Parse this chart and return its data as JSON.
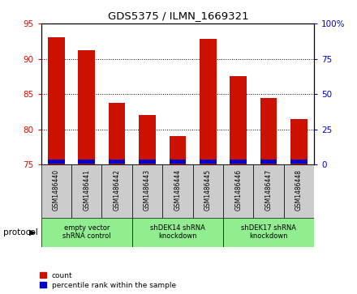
{
  "title": "GDS5375 / ILMN_1669321",
  "samples": [
    "GSM1486440",
    "GSM1486441",
    "GSM1486442",
    "GSM1486443",
    "GSM1486444",
    "GSM1486445",
    "GSM1486446",
    "GSM1486447",
    "GSM1486448"
  ],
  "count_values": [
    93.0,
    91.2,
    83.7,
    82.0,
    79.0,
    92.8,
    87.5,
    84.5,
    81.5
  ],
  "blue_heights": [
    0.55,
    0.55,
    0.55,
    0.55,
    0.55,
    0.55,
    0.55,
    0.55,
    0.55
  ],
  "ymin": 75,
  "ymax": 95,
  "y2min": 0,
  "y2max": 100,
  "yticks_left": [
    75,
    80,
    85,
    90,
    95
  ],
  "yticks_right": [
    0,
    25,
    50,
    75,
    100
  ],
  "bar_color_red": "#CC1100",
  "bar_color_blue": "#0000CC",
  "protocol_groups": [
    {
      "label": "empty vector\nshRNA control",
      "start": 0,
      "end": 3,
      "color": "#90EE90"
    },
    {
      "label": "shDEK14 shRNA\nknockdown",
      "start": 3,
      "end": 6,
      "color": "#90EE90"
    },
    {
      "label": "shDEK17 shRNA\nknockdown",
      "start": 6,
      "end": 9,
      "color": "#90EE90"
    }
  ],
  "protocol_label": "protocol",
  "legend_count": "count",
  "legend_percentile": "percentile rank within the sample",
  "tick_label_color_left": "#CC1100",
  "tick_label_color_right": "#0000CC"
}
